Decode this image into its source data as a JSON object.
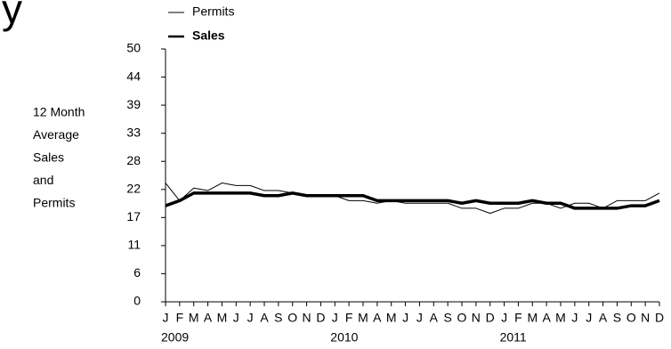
{
  "chart_data": {
    "type": "line",
    "title": "y",
    "ylabel": [
      "12 Month",
      "Average",
      "Sales",
      "and",
      "Permits"
    ],
    "categories": [
      "J",
      "F",
      "M",
      "A",
      "M",
      "J",
      "J",
      "A",
      "S",
      "O",
      "N",
      "D",
      "J",
      "F",
      "M",
      "A",
      "M",
      "J",
      "J",
      "A",
      "S",
      "O",
      "N",
      "D",
      "J",
      "F",
      "M",
      "A",
      "M",
      "J",
      "J",
      "A",
      "S",
      "O",
      "N",
      "D"
    ],
    "years": [
      "2009",
      "2010",
      "2011"
    ],
    "ylim": [
      0,
      50
    ],
    "yticks": [
      0,
      {
        "value": 5.56,
        "label": "6"
      },
      {
        "value": 11.11,
        "label": "11"
      },
      {
        "value": 16.67,
        "label": "17"
      },
      {
        "value": 22.22,
        "label": "22"
      },
      {
        "value": 27.78,
        "label": "28"
      },
      {
        "value": 33.33,
        "label": "33"
      },
      {
        "value": 38.89,
        "label": "39"
      },
      {
        "value": 44.44,
        "label": "44"
      },
      50
    ],
    "series": [
      {
        "name": "Permits",
        "color": "#000000",
        "width": 1,
        "values": [
          23.5,
          20,
          22.5,
          22,
          23.5,
          23,
          23,
          22,
          22,
          21.5,
          21,
          21,
          21,
          20,
          20,
          19.5,
          20,
          19.5,
          19.5,
          19.5,
          19.5,
          18.5,
          18.5,
          17.5,
          18.5,
          18.5,
          19.5,
          19.5,
          18.5,
          19.5,
          19.5,
          18.5,
          20,
          20,
          20,
          21.5
        ]
      },
      {
        "name": "Sales",
        "color": "#000000",
        "width": 3.5,
        "values": [
          19,
          20,
          21.5,
          21.5,
          21.5,
          21.5,
          21.5,
          21,
          21,
          21.5,
          21,
          21,
          21,
          21,
          21,
          20,
          20,
          20,
          20,
          20,
          20,
          19.5,
          20,
          19.5,
          19.5,
          19.5,
          20,
          19.5,
          19.5,
          18.5,
          18.5,
          18.5,
          18.5,
          19,
          19,
          20
        ]
      }
    ]
  }
}
